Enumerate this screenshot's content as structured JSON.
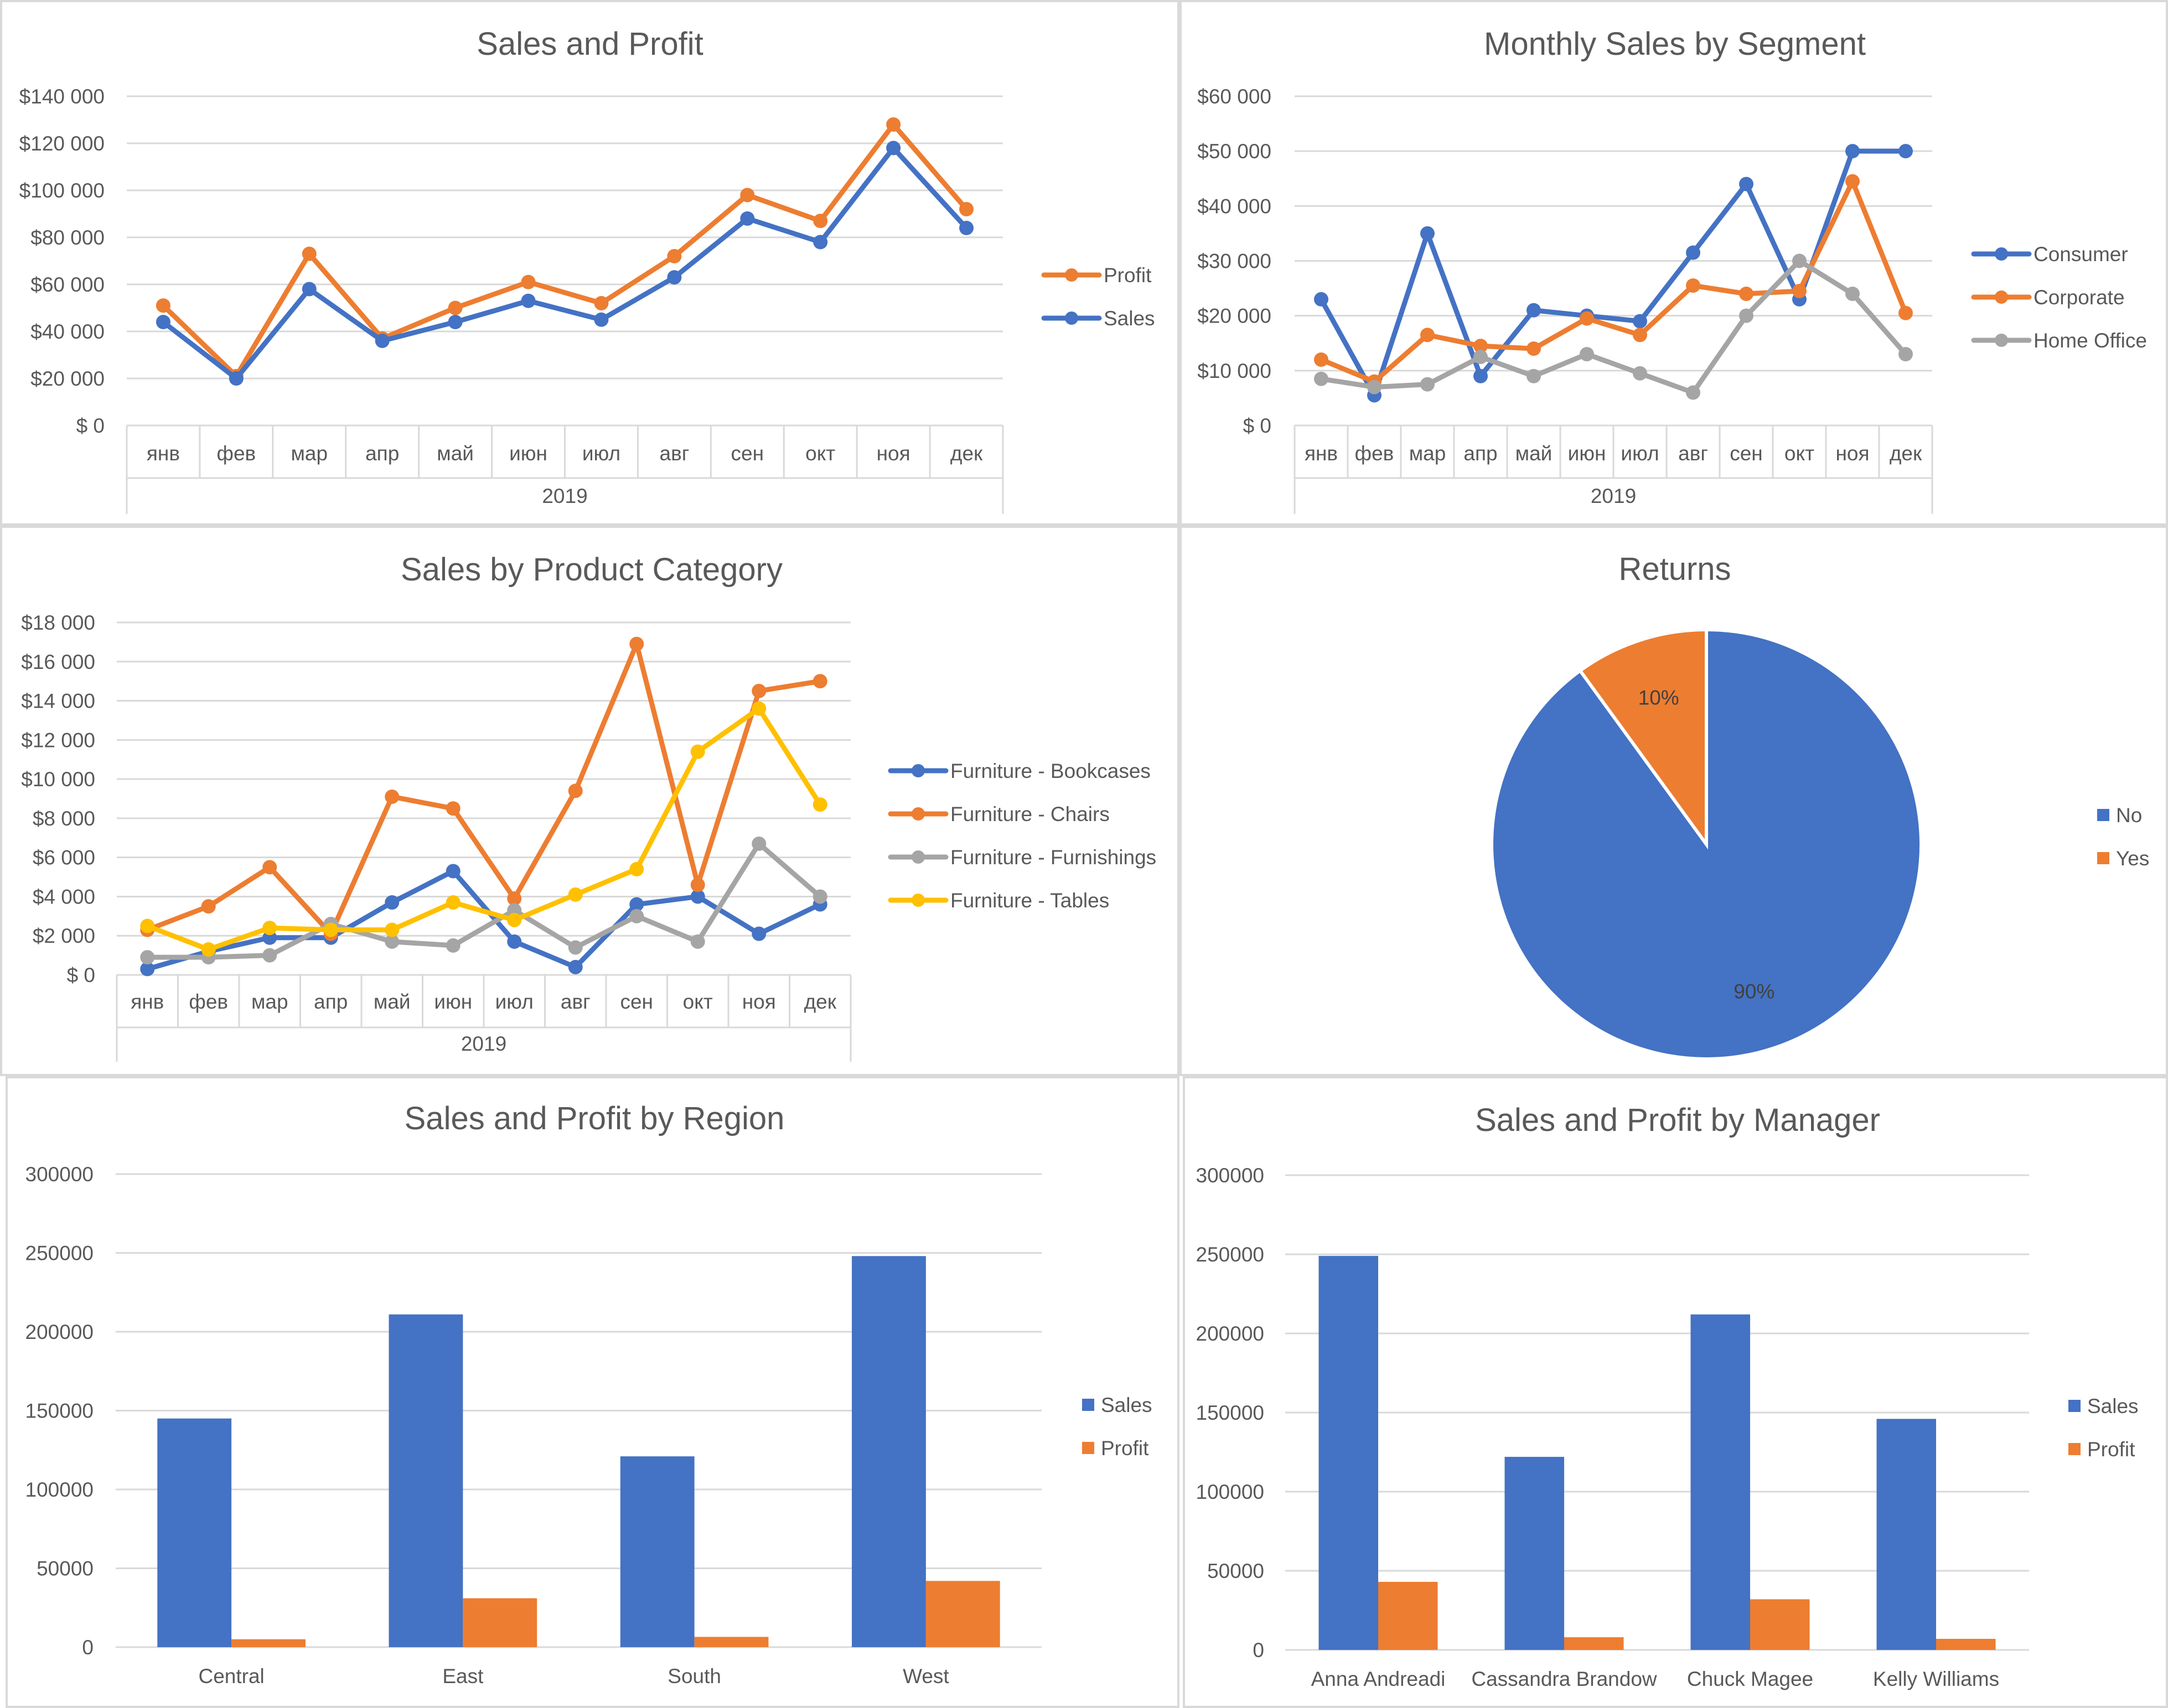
{
  "colors": {
    "blue": "#4472c4",
    "orange": "#ed7d31",
    "gray": "#a5a5a5",
    "yellow": "#ffc000",
    "axis": "#595959",
    "grid": "#d9d9d9"
  },
  "chart_data": [
    {
      "id": "sales-profit",
      "type": "line",
      "title": "Sales and Profit",
      "xlabel": "2019",
      "ylabel": "",
      "ylim": [
        0,
        140000
      ],
      "y_ticks": [
        "$ 0",
        "$20 000",
        "$40 000",
        "$60 000",
        "$80 000",
        "$100 000",
        "$120 000",
        "$140 000"
      ],
      "categories": [
        "янв",
        "фев",
        "мар",
        "апр",
        "май",
        "июн",
        "июл",
        "авг",
        "сен",
        "окт",
        "ноя",
        "дек"
      ],
      "legend": "right",
      "grid": true,
      "series": [
        {
          "name": "Profit",
          "color": "#ed7d31",
          "values": [
            51000,
            21000,
            73000,
            37000,
            50000,
            61000,
            52000,
            72000,
            98000,
            87000,
            128000,
            92000
          ]
        },
        {
          "name": "Sales",
          "color": "#4472c4",
          "values": [
            44000,
            20000,
            58000,
            36000,
            44000,
            53000,
            45000,
            63000,
            88000,
            78000,
            118000,
            84000
          ]
        }
      ]
    },
    {
      "id": "segment",
      "type": "line",
      "title": "Monthly Sales by Segment",
      "xlabel": "2019",
      "ylabel": "",
      "ylim": [
        0,
        60000
      ],
      "y_ticks": [
        "$ 0",
        "$10 000",
        "$20 000",
        "$30 000",
        "$40 000",
        "$50 000",
        "$60 000"
      ],
      "categories": [
        "янв",
        "фев",
        "мар",
        "апр",
        "май",
        "июн",
        "июл",
        "авг",
        "сен",
        "окт",
        "ноя",
        "дек"
      ],
      "legend": "right",
      "grid": true,
      "series": [
        {
          "name": "Consumer",
          "color": "#4472c4",
          "values": [
            23000,
            5500,
            35000,
            9000,
            21000,
            20000,
            19000,
            31500,
            44000,
            23000,
            50000,
            50000
          ]
        },
        {
          "name": "Corporate",
          "color": "#ed7d31",
          "values": [
            12000,
            8000,
            16500,
            14500,
            14000,
            19500,
            16500,
            25500,
            24000,
            24500,
            44500,
            20500
          ]
        },
        {
          "name": "Home Office",
          "color": "#a5a5a5",
          "values": [
            8500,
            7000,
            7500,
            12500,
            9000,
            13000,
            9500,
            6000,
            20000,
            30000,
            24000,
            13000
          ]
        }
      ]
    },
    {
      "id": "category",
      "type": "line",
      "title": "Sales by Product Category",
      "xlabel": "2019",
      "ylabel": "",
      "ylim": [
        0,
        18000
      ],
      "y_ticks": [
        "$ 0",
        "$2 000",
        "$4 000",
        "$6 000",
        "$8 000",
        "$10 000",
        "$12 000",
        "$14 000",
        "$16 000",
        "$18 000"
      ],
      "categories": [
        "янв",
        "фев",
        "мар",
        "апр",
        "май",
        "июн",
        "июл",
        "авг",
        "сен",
        "окт",
        "ноя",
        "дек"
      ],
      "legend": "right",
      "grid": true,
      "series": [
        {
          "name": "Furniture - Bookcases",
          "color": "#4472c4",
          "values": [
            300,
            1200,
            1900,
            1900,
            3700,
            5300,
            1700,
            400,
            3600,
            4000,
            2100,
            3600
          ]
        },
        {
          "name": "Furniture - Chairs",
          "color": "#ed7d31",
          "values": [
            2300,
            3500,
            5500,
            2100,
            9100,
            8500,
            3900,
            9400,
            16900,
            4600,
            14500,
            15000
          ]
        },
        {
          "name": "Furniture - Furnishings",
          "color": "#a5a5a5",
          "values": [
            900,
            900,
            1000,
            2600,
            1700,
            1500,
            3300,
            1400,
            3000,
            1700,
            6700,
            4000
          ]
        },
        {
          "name": "Furniture - Tables",
          "color": "#ffc000",
          "values": [
            2500,
            1300,
            2400,
            2300,
            2300,
            3700,
            2800,
            4100,
            5400,
            11400,
            13600,
            8700
          ]
        }
      ]
    },
    {
      "id": "returns",
      "type": "pie",
      "title": "Returns",
      "legend": "right",
      "slices": [
        {
          "name": "No",
          "value": 90,
          "label": "90%",
          "color": "#4472c4"
        },
        {
          "name": "Yes",
          "value": 10,
          "label": "10%",
          "color": "#ed7d31"
        }
      ]
    },
    {
      "id": "region",
      "type": "bar",
      "title": "Sales and Profit by Region",
      "xlabel": "",
      "ylabel": "",
      "ylim": [
        0,
        300000
      ],
      "y_ticks": [
        "0",
        "50000",
        "100000",
        "150000",
        "200000",
        "250000",
        "300000"
      ],
      "categories": [
        "Central",
        "East",
        "South",
        "West"
      ],
      "legend": "right",
      "grid": true,
      "series": [
        {
          "name": "Sales",
          "color": "#4472c4",
          "values": [
            145000,
            211000,
            121000,
            248000
          ]
        },
        {
          "name": "Profit",
          "color": "#ed7d31",
          "values": [
            5000,
            31000,
            6500,
            42000
          ]
        }
      ]
    },
    {
      "id": "manager",
      "type": "bar",
      "title": "Sales and Profit by Manager",
      "xlabel": "",
      "ylabel": "",
      "ylim": [
        0,
        300000
      ],
      "y_ticks": [
        "0",
        "50000",
        "100000",
        "150000",
        "200000",
        "250000",
        "300000"
      ],
      "categories": [
        "Anna Andreadi",
        "Cassandra Brandow",
        "Chuck Magee",
        "Kelly Williams"
      ],
      "legend": "right",
      "grid": true,
      "series": [
        {
          "name": "Sales",
          "color": "#4472c4",
          "values": [
            249000,
            122000,
            212000,
            146000
          ]
        },
        {
          "name": "Profit",
          "color": "#ed7d31",
          "values": [
            43000,
            8000,
            32000,
            7000
          ]
        }
      ]
    }
  ]
}
